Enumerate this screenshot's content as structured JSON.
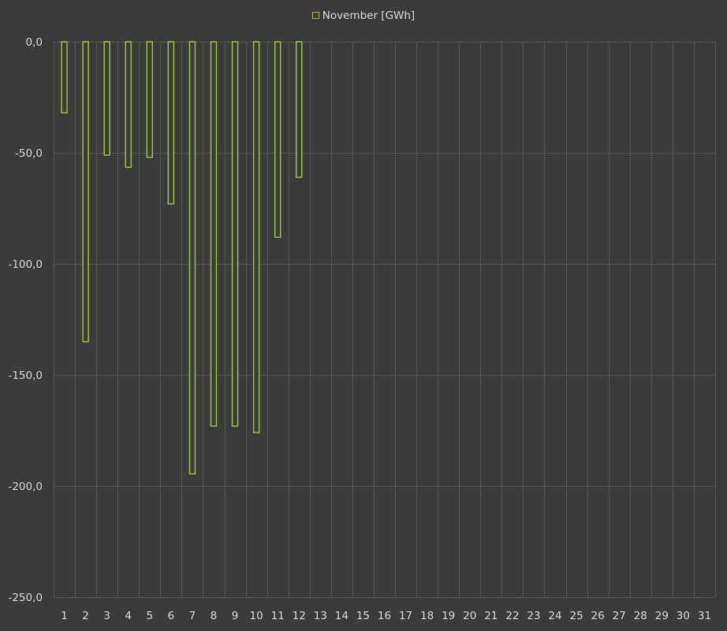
{
  "colors": {
    "background": "#3b3b3b",
    "grid": "#555555",
    "bar_stroke": "#9bc53d",
    "bar_fill": "#3b3b3b",
    "text": "#d9d9d9"
  },
  "legend": {
    "label": "November [GWh]",
    "placement": "top-center"
  },
  "chart_data": {
    "type": "bar",
    "title": "",
    "xlabel": "",
    "ylabel": "",
    "ylim": [
      -250,
      0
    ],
    "grid": true,
    "legend_placement": "top-center",
    "y_ticks": [
      "0,0",
      "-50,0",
      "-100,0",
      "-150,0",
      "-200,0",
      "-250,0"
    ],
    "y_tick_values": [
      0,
      -50,
      -100,
      -150,
      -200,
      -250
    ],
    "categories": [
      "1",
      "2",
      "3",
      "4",
      "5",
      "6",
      "7",
      "8",
      "9",
      "10",
      "11",
      "12",
      "13",
      "14",
      "15",
      "16",
      "17",
      "18",
      "19",
      "20",
      "21",
      "22",
      "23",
      "24",
      "25",
      "26",
      "27",
      "28",
      "29",
      "30",
      "31"
    ],
    "series": [
      {
        "name": "November [GWh]",
        "values": [
          -32,
          -135,
          -51,
          -56.5,
          -52,
          -73,
          -194.5,
          -173,
          -173,
          -176,
          -88,
          -61,
          null,
          null,
          null,
          null,
          null,
          null,
          null,
          null,
          null,
          null,
          null,
          null,
          null,
          null,
          null,
          null,
          null,
          null,
          null
        ]
      }
    ]
  }
}
